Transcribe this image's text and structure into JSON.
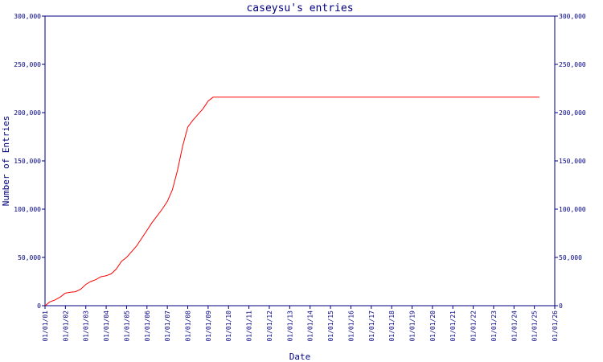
{
  "chart_data": {
    "type": "line",
    "title": "caseysu's entries",
    "xlabel": "Date",
    "ylabel": "Number of Entries",
    "ylim": [
      0,
      300000
    ],
    "yticks": [
      0,
      50000,
      100000,
      150000,
      200000,
      250000,
      300000
    ],
    "ytick_labels": [
      "0",
      "50,000",
      "100,000",
      "150,000",
      "200,000",
      "250,000",
      "300,000"
    ],
    "xlim": [
      "2001-01-01",
      "2026-01-01"
    ],
    "xtick_labels": [
      "01/01/01",
      "01/01/02",
      "01/01/03",
      "01/01/04",
      "01/01/05",
      "01/01/06",
      "01/01/07",
      "01/01/08",
      "01/01/09",
      "01/01/10",
      "01/01/11",
      "01/01/12",
      "01/01/13",
      "01/01/14",
      "01/01/15",
      "01/01/16",
      "01/01/17",
      "01/01/18",
      "01/01/19",
      "01/01/20",
      "01/01/21",
      "01/01/22",
      "01/01/23",
      "01/01/24",
      "01/01/25",
      "01/01/26"
    ],
    "grid": false,
    "line_color": "#ff0000",
    "axis_color": "#000080",
    "series": [
      {
        "x": [
          "2001-01-01",
          "2001-04-01",
          "2001-07-01",
          "2001-10-01",
          "2002-01-01",
          "2002-04-01",
          "2002-07-01",
          "2002-10-01",
          "2003-01-01",
          "2003-04-01",
          "2003-07-01",
          "2003-10-01",
          "2004-01-01",
          "2004-04-01",
          "2004-07-01",
          "2004-10-01",
          "2005-01-01",
          "2005-04-01",
          "2005-07-01",
          "2005-10-01",
          "2006-01-01",
          "2006-04-01",
          "2006-07-01",
          "2006-10-01",
          "2007-01-01",
          "2007-04-01",
          "2007-07-01",
          "2007-10-01",
          "2008-01-01",
          "2008-04-01",
          "2008-07-01",
          "2008-10-01",
          "2009-01-01",
          "2009-04-01",
          "2009-07-01",
          "2025-04-01"
        ],
        "values": [
          0,
          4000,
          6000,
          9000,
          13000,
          14000,
          14500,
          17000,
          22000,
          25000,
          27000,
          30000,
          31000,
          33000,
          38000,
          46000,
          50000,
          56000,
          62000,
          70000,
          78000,
          86000,
          93000,
          100000,
          108000,
          120000,
          140000,
          165000,
          185000,
          192000,
          198000,
          204000,
          212000,
          216000,
          216000,
          216000
        ]
      }
    ]
  }
}
